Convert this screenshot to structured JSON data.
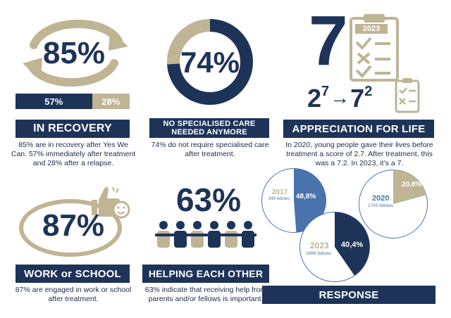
{
  "colors": {
    "navy": "#1e3358",
    "gold": "#bfb494",
    "blue": "#4a73ad",
    "white": "#ffffff"
  },
  "recovery": {
    "percent": "85%",
    "bar_left": "57%",
    "bar_right": "28%",
    "bar_left_value": 57,
    "bar_right_value": 28,
    "banner": "IN RECOVERY",
    "description": "85% are in recovery after Yes We Can. 57% immediately after treatment and 28% after a relapse."
  },
  "care": {
    "percent": "74%",
    "value": 74,
    "banner": "NO SPECIALISED CARE NEEDED ANYMORE",
    "description": "74% do not require specialised care after treatment."
  },
  "appreciation": {
    "big_number": "7",
    "clipboard_year": "2023",
    "from_base": "2",
    "from_exp": "7",
    "arrow": "→",
    "to_base": "7",
    "to_exp": "2",
    "banner": "APPRECIATION FOR LIFE",
    "description": "In 2020, young people gave their lives before treatment a score of 2.7. After treatment, this was a 7.2. In 2023, it’s a 7."
  },
  "work": {
    "percent": "87%",
    "value": 87,
    "banner": "WORK or SCHOOL",
    "description": "87% are engaged in work or school after treatment.",
    "icon": "thumbs-up-smiley-icon"
  },
  "helping": {
    "percent": "63%",
    "banner": "HELPING EACH OTHER",
    "description": "63% indicate that receiving help from parents and/or fellows is important.",
    "icon": "people-group-icon"
  },
  "response": {
    "banner": "RESPONSE",
    "pies": [
      {
        "year": "2017",
        "fellows": "349 fellows",
        "label": "48,8%",
        "value": 48.8
      },
      {
        "year": "2020",
        "fellows": "1743 fellows",
        "label": "20,8%",
        "value": 20.8
      },
      {
        "year": "2023",
        "fellows": "1899 fellows",
        "label": "40,4%",
        "value": 40.4
      }
    ]
  }
}
